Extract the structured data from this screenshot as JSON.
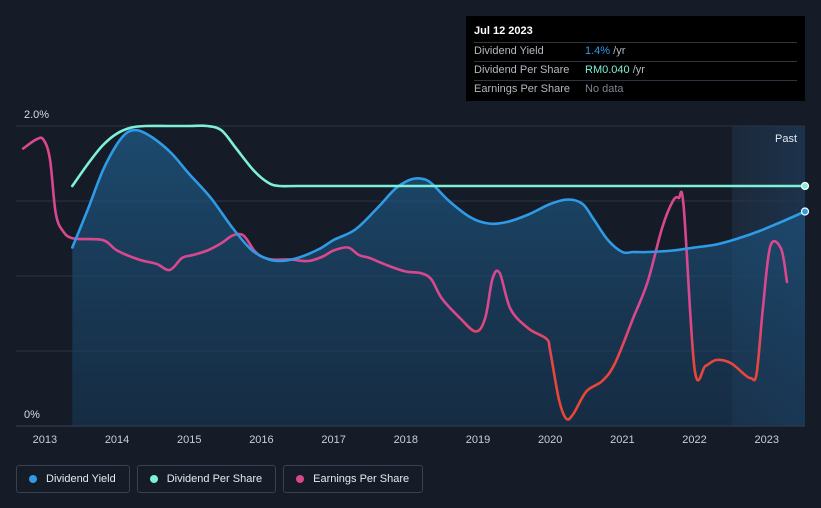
{
  "tooltip": {
    "date": "Jul 12 2023",
    "rows": [
      {
        "label": "Dividend Yield",
        "value": "1.4%",
        "unit": " /yr"
      },
      {
        "label": "Dividend Per Share",
        "value": "RM0.040",
        "unit": " /yr"
      },
      {
        "label": "Earnings Per Share",
        "value": "No data",
        "unit": ""
      }
    ]
  },
  "past_label": "Past",
  "legend": [
    {
      "label": "Dividend Yield",
      "color": "#2f9be6"
    },
    {
      "label": "Dividend Per Share",
      "color": "#7ff0d8"
    },
    {
      "label": "Earnings Per Share",
      "color": "#d9488f"
    }
  ],
  "chart_data": {
    "type": "line",
    "title": "",
    "xlabel": "",
    "ylabel": "",
    "y_tick_labels": [
      "2.0%",
      "0%"
    ],
    "x_tick_labels": [
      "2013",
      "2014",
      "2015",
      "2016",
      "2017",
      "2018",
      "2019",
      "2020",
      "2021",
      "2022",
      "2023"
    ],
    "xlim": [
      2012.6,
      2023.53
    ],
    "ylim": [
      0,
      2.0
    ],
    "grid": true,
    "legend_placement": "bottom-left",
    "series": [
      {
        "name": "Dividend Yield",
        "color": "#2f9be6",
        "area": true,
        "x": [
          2013.38,
          2013.6,
          2013.8,
          2014.0,
          2014.15,
          2014.3,
          2014.5,
          2014.75,
          2015.0,
          2015.3,
          2015.6,
          2015.85,
          2016.05,
          2016.25,
          2016.5,
          2016.8,
          2017.0,
          2017.3,
          2017.6,
          2017.85,
          2018.05,
          2018.2,
          2018.35,
          2018.6,
          2018.9,
          2019.15,
          2019.4,
          2019.7,
          2020.0,
          2020.25,
          2020.45,
          2020.6,
          2020.8,
          2021.0,
          2021.15,
          2021.35,
          2021.7,
          2022.0,
          2022.3,
          2022.6,
          2022.9,
          2023.2,
          2023.53
        ],
        "y": [
          1.19,
          1.45,
          1.7,
          1.88,
          1.96,
          1.97,
          1.92,
          1.82,
          1.68,
          1.52,
          1.32,
          1.18,
          1.12,
          1.1,
          1.12,
          1.18,
          1.24,
          1.31,
          1.45,
          1.58,
          1.64,
          1.65,
          1.62,
          1.5,
          1.39,
          1.35,
          1.36,
          1.41,
          1.48,
          1.51,
          1.48,
          1.38,
          1.24,
          1.16,
          1.16,
          1.16,
          1.17,
          1.19,
          1.21,
          1.25,
          1.3,
          1.36,
          1.43
        ]
      },
      {
        "name": "Dividend Per Share",
        "color": "#7ff0d8",
        "x": [
          2013.38,
          2013.6,
          2013.8,
          2014.0,
          2014.2,
          2014.4,
          2014.7,
          2015.0,
          2015.25,
          2015.45,
          2015.65,
          2015.9,
          2016.1,
          2016.25,
          2016.5,
          2017.0,
          2018.0,
          2019.0,
          2020.0,
          2021.0,
          2022.0,
          2023.0,
          2023.53
        ],
        "y": [
          1.6,
          1.75,
          1.87,
          1.95,
          1.99,
          2.0,
          2.0,
          2.0,
          2.0,
          1.97,
          1.85,
          1.7,
          1.62,
          1.6,
          1.6,
          1.6,
          1.6,
          1.6,
          1.6,
          1.6,
          1.6,
          1.6,
          1.6
        ]
      },
      {
        "name": "Earnings Per Share",
        "color": "#d9488f",
        "x": [
          2012.7,
          2012.88,
          2012.98,
          2013.07,
          2013.15,
          2013.25,
          2013.4,
          2013.8,
          2014.0,
          2014.3,
          2014.55,
          2014.73,
          2014.9,
          2015.05,
          2015.25,
          2015.45,
          2015.6,
          2015.75,
          2015.9,
          2016.0,
          2016.15,
          2016.4,
          2016.65,
          2016.85,
          2017.0,
          2017.2,
          2017.35,
          2017.5,
          2017.75,
          2018.0,
          2018.2,
          2018.35,
          2018.5,
          2018.75,
          2018.97,
          2019.1,
          2019.2,
          2019.3,
          2019.45,
          2019.7,
          2019.95,
          2020.0,
          2020.12,
          2020.22,
          2020.32,
          2020.5,
          2020.72,
          2020.9,
          2021.15,
          2021.35,
          2021.55,
          2021.7,
          2021.78,
          2021.85,
          2022.0,
          2022.15,
          2022.3,
          2022.5,
          2022.7,
          2022.78,
          2022.86,
          2022.95,
          2023.05,
          2023.2,
          2023.28
        ],
        "y": [
          1.85,
          1.91,
          1.91,
          1.78,
          1.42,
          1.3,
          1.25,
          1.24,
          1.17,
          1.11,
          1.08,
          1.04,
          1.12,
          1.14,
          1.17,
          1.22,
          1.27,
          1.27,
          1.17,
          1.13,
          1.11,
          1.11,
          1.1,
          1.13,
          1.17,
          1.19,
          1.14,
          1.12,
          1.07,
          1.03,
          1.02,
          0.98,
          0.85,
          0.72,
          0.63,
          0.72,
          0.98,
          1.02,
          0.78,
          0.65,
          0.58,
          0.5,
          0.18,
          0.05,
          0.08,
          0.23,
          0.3,
          0.42,
          0.72,
          0.96,
          1.32,
          1.5,
          1.52,
          1.46,
          0.38,
          0.4,
          0.44,
          0.42,
          0.34,
          0.32,
          0.35,
          0.8,
          1.2,
          1.18,
          0.96
        ]
      }
    ]
  }
}
